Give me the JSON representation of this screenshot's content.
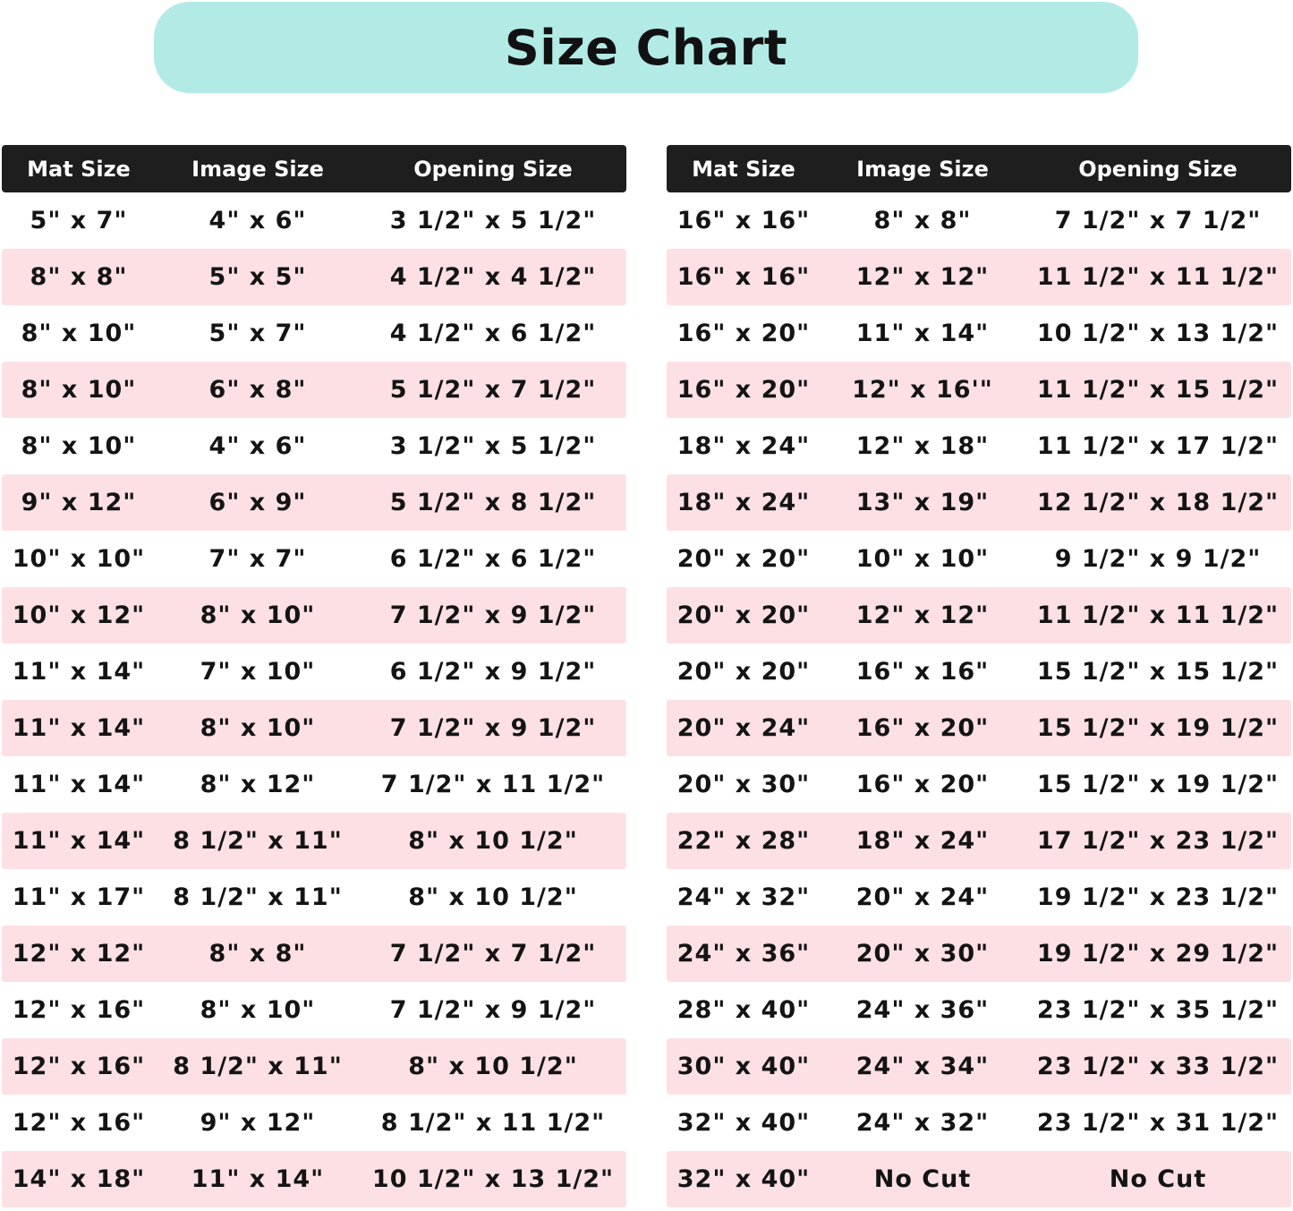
{
  "title": "Size Chart",
  "colors": {
    "title_bg": "#b2ebe6",
    "header_bg": "#1e1e1e",
    "stripe": "#fde0e4"
  },
  "headers": [
    "Mat Size",
    "Image Size",
    "Opening Size"
  ],
  "left_table": [
    [
      "5\" x 7\"",
      "4\" x 6\"",
      "3 1/2\" x 5 1/2\""
    ],
    [
      "8\" x 8\"",
      "5\" x 5\"",
      "4 1/2\" x 4 1/2\""
    ],
    [
      "8\" x 10\"",
      "5\" x 7\"",
      "4 1/2\" x 6 1/2\""
    ],
    [
      "8\" x 10\"",
      "6\" x 8\"",
      "5 1/2\" x 7 1/2\""
    ],
    [
      "8\" x 10\"",
      "4\" x 6\"",
      "3 1/2\" x 5 1/2\""
    ],
    [
      "9\" x 12\"",
      "6\" x 9\"",
      "5 1/2\" x 8 1/2\""
    ],
    [
      "10\" x 10\"",
      "7\" x 7\"",
      "6 1/2\" x 6 1/2\""
    ],
    [
      "10\" x 12\"",
      "8\" x 10\"",
      "7 1/2\" x 9 1/2\""
    ],
    [
      "11\" x 14\"",
      "7\" x 10\"",
      "6 1/2\" x 9 1/2\""
    ],
    [
      "11\" x 14\"",
      "8\" x 10\"",
      "7 1/2\" x 9 1/2\""
    ],
    [
      "11\" x 14\"",
      "8\" x 12\"",
      "7 1/2\" x 11 1/2\""
    ],
    [
      "11\" x 14\"",
      "8 1/2\" x 11\"",
      "8\" x 10 1/2\""
    ],
    [
      "11\" x 17\"",
      "8 1/2\" x 11\"",
      "8\" x 10 1/2\""
    ],
    [
      "12\" x 12\"",
      "8\" x 8\"",
      "7 1/2\" x 7 1/2\""
    ],
    [
      "12\" x 16\"",
      "8\" x 10\"",
      "7 1/2\" x 9 1/2\""
    ],
    [
      "12\" x 16\"",
      "8 1/2\" x 11\"",
      "8\" x 10 1/2\""
    ],
    [
      "12\" x 16\"",
      "9\" x 12\"",
      "8 1/2\" x 11 1/2\""
    ],
    [
      "14\" x 18\"",
      "11\" x 14\"",
      "10 1/2\" x 13 1/2\""
    ]
  ],
  "right_table": [
    [
      "16\" x 16\"",
      "8\" x 8\"",
      "7 1/2\" x 7 1/2\""
    ],
    [
      "16\" x 16\"",
      "12\" x 12\"",
      "11 1/2\" x 11 1/2\""
    ],
    [
      "16\" x 20\"",
      "11\" x 14\"",
      "10 1/2\" x 13 1/2\""
    ],
    [
      "16\" x 20\"",
      "12\" x 16'\"",
      "11 1/2\" x 15 1/2\""
    ],
    [
      "18\" x 24\"",
      "12\" x 18\"",
      "11 1/2\" x 17 1/2\""
    ],
    [
      "18\" x 24\"",
      "13\" x 19\"",
      "12 1/2\" x 18 1/2\""
    ],
    [
      "20\" x 20\"",
      "10\" x 10\"",
      "9 1/2\" x 9 1/2\""
    ],
    [
      "20\" x 20\"",
      "12\" x 12\"",
      "11 1/2\" x 11 1/2\""
    ],
    [
      "20\" x 20\"",
      "16\" x 16\"",
      "15 1/2\" x 15 1/2\""
    ],
    [
      "20\" x 24\"",
      "16\" x 20\"",
      "15 1/2\" x 19 1/2\""
    ],
    [
      "20\" x 30\"",
      "16\" x 20\"",
      "15 1/2\" x 19 1/2\""
    ],
    [
      "22\" x 28\"",
      "18\" x 24\"",
      "17 1/2\" x 23 1/2\""
    ],
    [
      "24\" x 32\"",
      "20\" x 24\"",
      "19 1/2\" x 23 1/2\""
    ],
    [
      "24\" x 36\"",
      "20\" x 30\"",
      "19 1/2\" x 29 1/2\""
    ],
    [
      "28\" x 40\"",
      "24\" x 36\"",
      "23 1/2\" x 35 1/2\""
    ],
    [
      "30\" x 40\"",
      "24\" x 34\"",
      "23 1/2\" x 33 1/2\""
    ],
    [
      "32\" x 40\"",
      "24\" x 32\"",
      "23 1/2\" x 31 1/2\""
    ],
    [
      "32\" x 40\"",
      "No Cut",
      "No Cut"
    ]
  ]
}
